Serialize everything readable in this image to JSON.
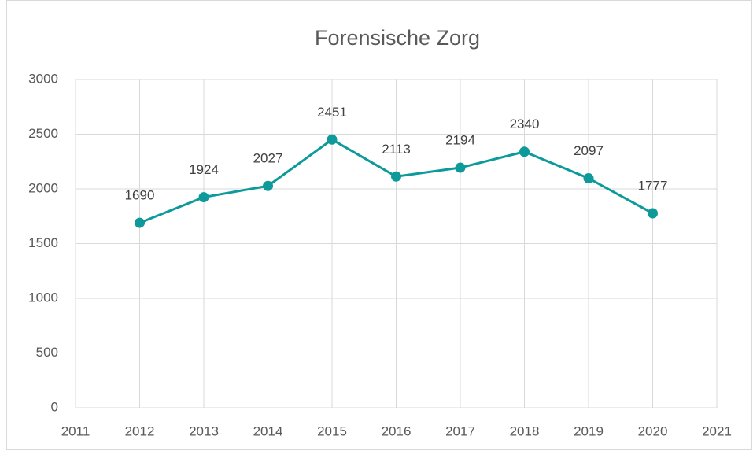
{
  "chart_data": {
    "type": "line",
    "title": "Forensische Zorg",
    "x": [
      2012,
      2013,
      2014,
      2015,
      2016,
      2017,
      2018,
      2019,
      2020
    ],
    "values": [
      1690,
      1924,
      2027,
      2451,
      2113,
      2194,
      2340,
      2097,
      1777
    ],
    "color": "#0e9a9a",
    "xlim": [
      2011,
      2021
    ],
    "xticks": [
      2011,
      2012,
      2013,
      2014,
      2015,
      2016,
      2017,
      2018,
      2019,
      2020,
      2021
    ],
    "ylim": [
      0,
      3000
    ],
    "yticks": [
      0,
      500,
      1000,
      1500,
      2000,
      2500,
      3000
    ],
    "grid": true
  }
}
